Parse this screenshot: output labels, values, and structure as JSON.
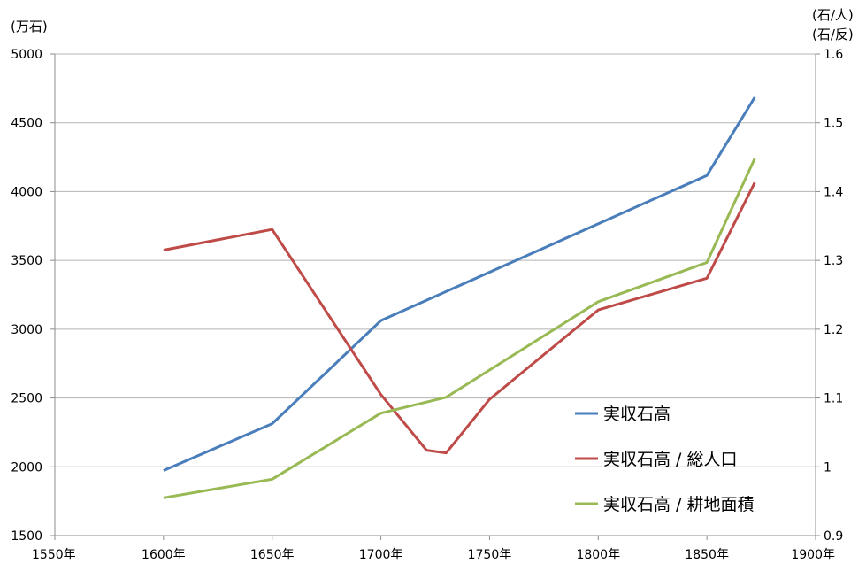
{
  "chart_data": {
    "type": "line",
    "left_unit_label": "(万石)",
    "right_unit_label_1": "(石/人)",
    "right_unit_label_2": "(石/反)",
    "xlim": [
      1550,
      1900
    ],
    "x_ticks": [
      1550,
      1600,
      1650,
      1700,
      1750,
      1800,
      1850,
      1900
    ],
    "x_tick_labels": [
      "1550年",
      "1600年",
      "1650年",
      "1700年",
      "1750年",
      "1800年",
      "1850年",
      "1900年"
    ],
    "ylim_left": [
      1500,
      5000
    ],
    "y_left_ticks": [
      1500,
      2000,
      2500,
      3000,
      3500,
      4000,
      4500,
      5000
    ],
    "y_left_tick_labels": [
      "1500",
      "2000",
      "2500",
      "3000",
      "3500",
      "4000",
      "4500",
      "5000"
    ],
    "ylim_right": [
      0.9,
      1.6
    ],
    "y_right_ticks": [
      0.9,
      1.0,
      1.1,
      1.2,
      1.3,
      1.4,
      1.5,
      1.6
    ],
    "y_right_tick_labels": [
      "0.9",
      "1",
      "1.1",
      "1.2",
      "1.3",
      "1.4",
      "1.5",
      "1.6"
    ],
    "grid": "horizontal",
    "legend_position": "bottom-right",
    "series": [
      {
        "name": "実収石高",
        "axis": "left",
        "color": "#4a7ebb",
        "x": [
          1600,
          1650,
          1700,
          1850,
          1872
        ],
        "y": [
          1973,
          2313,
          3063,
          4117,
          4685
        ]
      },
      {
        "name": "実収石高 / 総人口",
        "axis": "right",
        "color": "#be4b48",
        "x": [
          1600,
          1650,
          1700,
          1721,
          1730,
          1750,
          1800,
          1850,
          1872
        ],
        "y": [
          1.315,
          1.345,
          1.105,
          1.024,
          1.02,
          1.098,
          1.228,
          1.274,
          1.413
        ]
      },
      {
        "name": "実収石高 / 耕地面積",
        "axis": "right",
        "color": "#98b954",
        "x": [
          1600,
          1650,
          1700,
          1730,
          1800,
          1850,
          1872
        ],
        "y": [
          0.955,
          0.982,
          1.078,
          1.101,
          1.24,
          1.297,
          1.448
        ]
      }
    ]
  }
}
